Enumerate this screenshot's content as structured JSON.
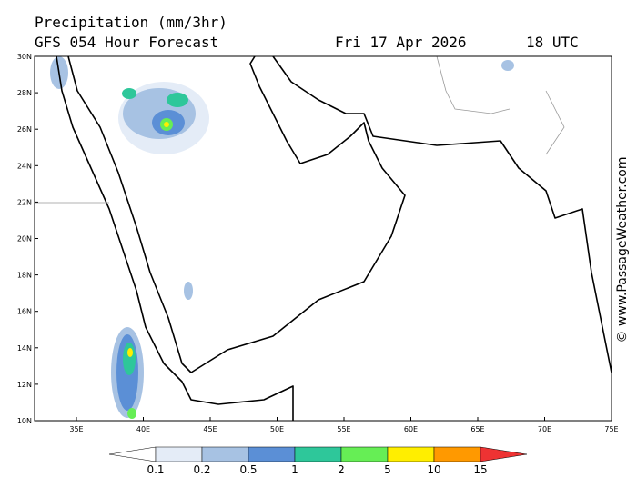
{
  "header": {
    "title": "Precipitation (mm/3hr)",
    "subtitle": "GFS 054 Hour Forecast",
    "date": "Fri 17 Apr 2026",
    "time": "18 UTC"
  },
  "map": {
    "lat_labels": [
      "30N",
      "28N",
      "26N",
      "24N",
      "22N",
      "20N",
      "18N",
      "16N",
      "14N",
      "12N",
      "10N"
    ],
    "lon_labels": [
      "35E",
      "40E",
      "45E",
      "50E",
      "55E",
      "60E",
      "65E",
      "70E",
      "75E"
    ]
  },
  "legend": {
    "labels": [
      "0.1",
      "0.2",
      "0.5",
      "1",
      "2",
      "5",
      "10",
      "15"
    ],
    "colors": [
      "#ffffff",
      "#e4ecf7",
      "#a7c2e3",
      "#5b8fd6",
      "#2ec79a",
      "#66ee55",
      "#ffee00",
      "#ff9900",
      "#ee3333"
    ]
  },
  "watermark": "© www.PassageWeather.com"
}
